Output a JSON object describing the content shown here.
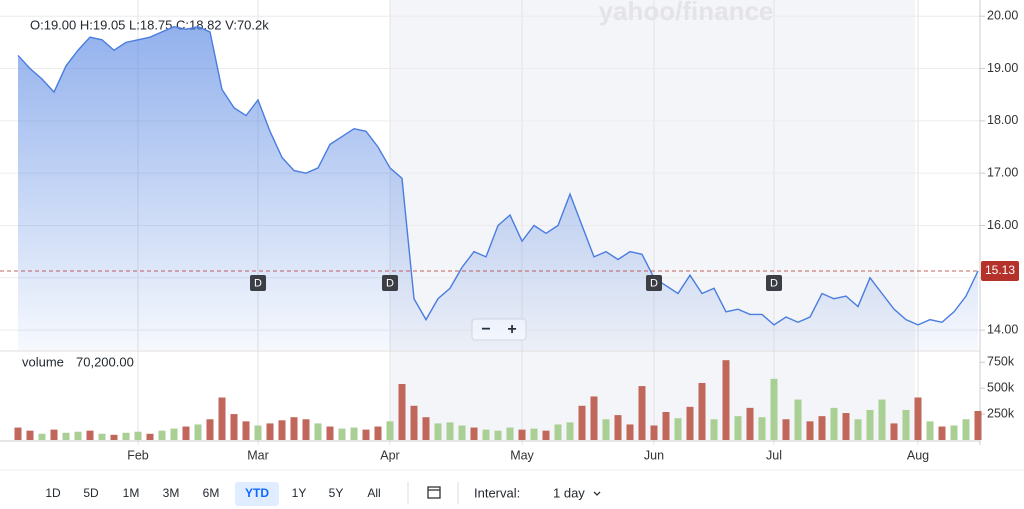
{
  "chart_data": [
    {
      "type": "area",
      "color": "#4a7de0",
      "categories": [
        null,
        null,
        null,
        null,
        null,
        null,
        null,
        null,
        null,
        null,
        "Feb",
        null,
        null,
        null,
        null,
        null,
        null,
        null,
        null,
        null,
        "Mar",
        null,
        null,
        null,
        null,
        null,
        null,
        null,
        null,
        null,
        null,
        "Apr",
        null,
        null,
        null,
        null,
        null,
        null,
        null,
        null,
        null,
        null,
        "May",
        null,
        null,
        null,
        null,
        null,
        null,
        null,
        null,
        null,
        null,
        "Jun",
        null,
        null,
        null,
        null,
        null,
        null,
        null,
        null,
        null,
        "Jul",
        null,
        null,
        null,
        null,
        null,
        null,
        null,
        null,
        null,
        null,
        null,
        "Aug",
        null,
        null,
        null,
        null,
        null
      ],
      "values": [
        19.25,
        19.0,
        18.8,
        18.55,
        19.05,
        19.35,
        19.6,
        19.55,
        19.35,
        19.5,
        19.55,
        19.6,
        19.7,
        19.8,
        19.75,
        19.8,
        19.7,
        18.6,
        18.25,
        18.1,
        18.4,
        17.8,
        17.3,
        17.05,
        17.0,
        17.1,
        17.55,
        17.7,
        17.85,
        17.8,
        17.5,
        17.1,
        16.9,
        14.6,
        14.2,
        14.6,
        14.8,
        15.2,
        15.5,
        15.4,
        16.0,
        16.2,
        15.7,
        16.0,
        15.85,
        16.0,
        16.6,
        16.0,
        15.4,
        15.5,
        15.35,
        15.5,
        15.45,
        15.0,
        14.85,
        14.7,
        15.05,
        14.7,
        14.8,
        14.35,
        14.4,
        14.3,
        14.3,
        14.1,
        14.25,
        14.15,
        14.25,
        14.7,
        14.6,
        14.65,
        14.45,
        15.0,
        14.7,
        14.4,
        14.2,
        14.1,
        14.2,
        14.15,
        14.35,
        14.65,
        15.13
      ],
      "ylim": [
        13.62,
        20.31
      ],
      "yticks": [
        {
          "value": 14,
          "label": "14.00"
        },
        {
          "value": 15,
          "label": "15.00"
        },
        {
          "value": 16,
          "label": "16.00"
        },
        {
          "value": 17,
          "label": "17.00"
        },
        {
          "value": 18,
          "label": "18.00"
        },
        {
          "value": 19,
          "label": "19.00"
        },
        {
          "value": 20,
          "label": "20.00"
        }
      ],
      "grid": true,
      "dividends": [
        {
          "at": 20,
          "label": "D"
        },
        {
          "at": 31,
          "label": "D"
        },
        {
          "at": 53,
          "label": "D"
        },
        {
          "at": 63,
          "label": "D"
        }
      ],
      "last_color": "#b5322b"
    },
    {
      "type": "bar",
      "title": "volume",
      "subtitle": "70,200.00",
      "values": [
        120000,
        90000,
        60000,
        100000,
        70000,
        80000,
        90000,
        60000,
        50000,
        70000,
        80000,
        60000,
        90000,
        110000,
        130000,
        150000,
        200000,
        410000,
        250000,
        180000,
        140000,
        160000,
        190000,
        220000,
        200000,
        160000,
        130000,
        110000,
        120000,
        100000,
        130000,
        180000,
        540000,
        330000,
        220000,
        160000,
        170000,
        140000,
        120000,
        100000,
        90000,
        120000,
        100000,
        110000,
        90000,
        150000,
        170000,
        330000,
        420000,
        200000,
        240000,
        150000,
        520000,
        140000,
        270000,
        210000,
        320000,
        550000,
        200000,
        770000,
        230000,
        310000,
        220000,
        590000,
        200000,
        390000,
        180000,
        230000,
        310000,
        260000,
        200000,
        290000,
        390000,
        160000,
        290000,
        410000,
        180000,
        130000,
        140000,
        200000,
        280000
      ],
      "colors": [
        "#c0665a",
        "#c0665a",
        "#a9cf94",
        "#c0665a",
        "#a9cf94",
        "#a9cf94",
        "#c0665a",
        "#a9cf94",
        "#c0665a",
        "#a9cf94",
        "#a9cf94",
        "#c0665a",
        "#a9cf94",
        "#a9cf94",
        "#c0665a",
        "#a9cf94",
        "#c0665a",
        "#c0665a",
        "#c0665a",
        "#c0665a",
        "#a9cf94",
        "#c0665a",
        "#c0665a",
        "#c0665a",
        "#c0665a",
        "#a9cf94",
        "#c0665a",
        "#a9cf94",
        "#a9cf94",
        "#c0665a",
        "#c0665a",
        "#a9cf94",
        "#c0665a",
        "#c0665a",
        "#c0665a",
        "#a9cf94",
        "#a9cf94",
        "#a9cf94",
        "#c0665a",
        "#a9cf94",
        "#a9cf94",
        "#a9cf94",
        "#c0665a",
        "#a9cf94",
        "#c0665a",
        "#a9cf94",
        "#a9cf94",
        "#c0665a",
        "#c0665a",
        "#a9cf94",
        "#c0665a",
        "#c0665a",
        "#c0665a",
        "#c0665a",
        "#c0665a",
        "#a9cf94",
        "#c0665a",
        "#c0665a",
        "#a9cf94",
        "#c0665a",
        "#a9cf94",
        "#c0665a",
        "#a9cf94",
        "#a9cf94",
        "#c0665a",
        "#a9cf94",
        "#c0665a",
        "#c0665a",
        "#a9cf94",
        "#c0665a",
        "#a9cf94",
        "#a9cf94",
        "#a9cf94",
        "#c0665a",
        "#a9cf94",
        "#c0665a",
        "#a9cf94",
        "#c0665a",
        "#a9cf94",
        "#a9cf94",
        "#c0665a"
      ],
      "ylim": [
        0,
        820000
      ],
      "yticks": [
        {
          "value": 250000,
          "label": "250k"
        },
        {
          "value": 500000,
          "label": "500k"
        },
        {
          "value": 750000,
          "label": "750k"
        }
      ]
    }
  ],
  "ui": {
    "ohlc": "O:19.00  H:19.05  L:18.75  C:18.82  V:70.2k",
    "watermark": "yahoo/finance",
    "zoom": [
      "−",
      "+"
    ],
    "ranges": [
      "1D",
      "5D",
      "1M",
      "3M",
      "6M",
      "YTD",
      "1Y",
      "5Y",
      "All"
    ],
    "active_range": "YTD",
    "interval_label": "Interval:",
    "interval": "1 day"
  }
}
